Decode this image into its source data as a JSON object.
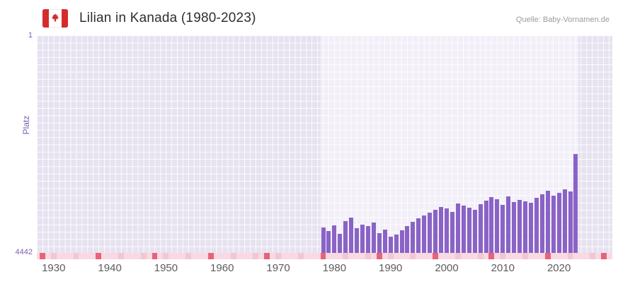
{
  "header": {
    "title": "Lilian in Kanada (1980-2023)",
    "source": "Quelle: Baby-Vornamen.de"
  },
  "axes": {
    "y_label": "Platz",
    "y_top_tick": "1",
    "y_bottom_tick": "4442"
  },
  "chart_data": {
    "type": "bar",
    "title": "Lilian in Kanada (1980-2023)",
    "ylabel": "Platz",
    "y_axis": {
      "best": 1,
      "worst": 4442,
      "inverted": true
    },
    "x_range": [
      1927,
      2029.5
    ],
    "x_ticks": [
      1930,
      1940,
      1950,
      1960,
      1970,
      1980,
      1990,
      2000,
      2010,
      2020
    ],
    "highlight_range": [
      1977.5,
      2023.5
    ],
    "years": [
      1978,
      1979,
      1980,
      1981,
      1982,
      1983,
      1984,
      1985,
      1986,
      1987,
      1988,
      1989,
      1990,
      1991,
      1992,
      1993,
      1994,
      1995,
      1996,
      1997,
      1998,
      1999,
      2000,
      2001,
      2002,
      2003,
      2004,
      2005,
      2006,
      2007,
      2008,
      2009,
      2010,
      2011,
      2012,
      2013,
      2014,
      2015,
      2016,
      2017,
      2018,
      2019,
      2020,
      2021,
      2022,
      2023
    ],
    "ranks": [
      3920,
      3990,
      3880,
      4050,
      3790,
      3720,
      3940,
      3870,
      3900,
      3820,
      4040,
      3960,
      4110,
      4060,
      3980,
      3890,
      3810,
      3740,
      3680,
      3620,
      3560,
      3500,
      3530,
      3610,
      3430,
      3470,
      3520,
      3560,
      3440,
      3380,
      3300,
      3350,
      3460,
      3290,
      3400,
      3360,
      3390,
      3420,
      3310,
      3240,
      3170,
      3280,
      3220,
      3150,
      3190,
      2430
    ],
    "baseline_marker_years": [
      1928,
      1938,
      1948,
      1958,
      1968,
      1978,
      1988,
      1998,
      2008,
      2018,
      2028
    ],
    "legend": null,
    "grid": true,
    "colors": {
      "bar": "#8a63c6",
      "plot_background": "#e7e2f0",
      "highlight_background": "#f2eff8",
      "strip_pink": "#f9d9e2",
      "strip_pink_alt": "#f3c6d4",
      "strip_marker_red": "#e8637a",
      "axis_purple": "#7d5fb0",
      "flag_red": "#d52b2b"
    }
  }
}
